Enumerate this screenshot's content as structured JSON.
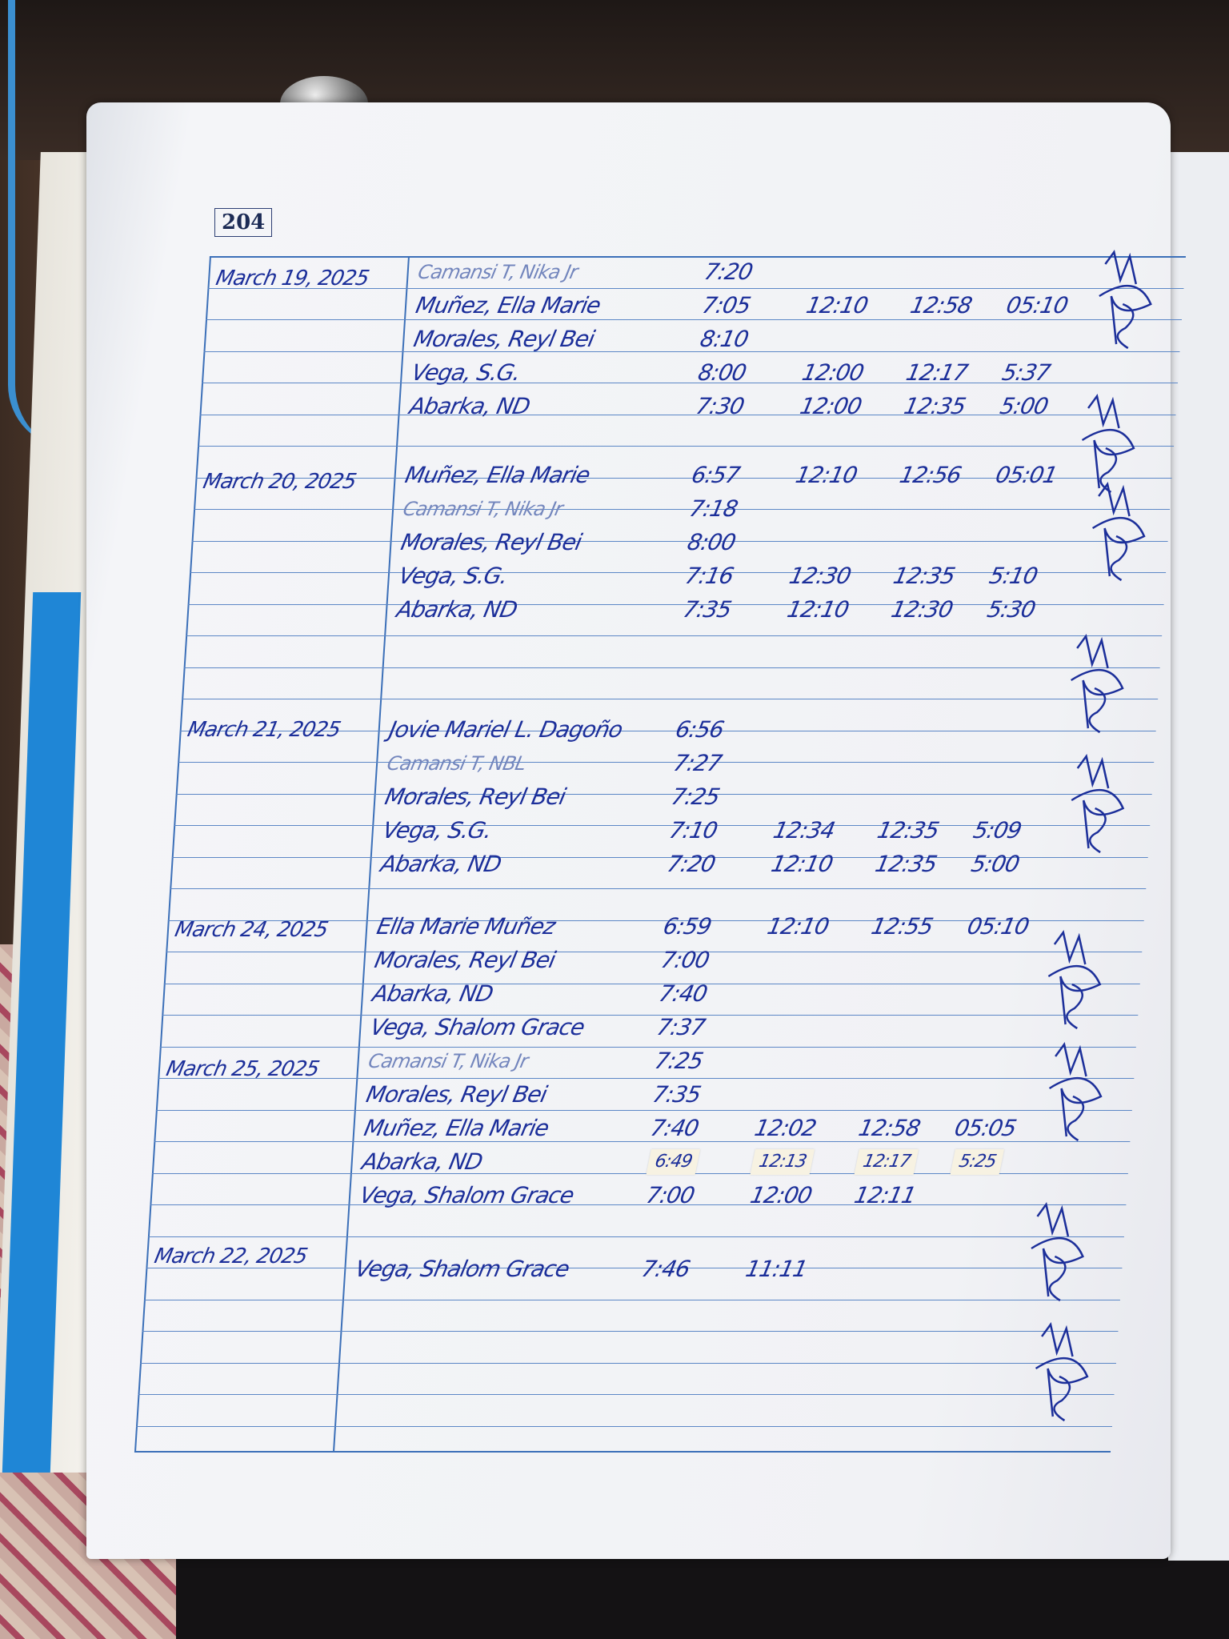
{
  "page_number": "204",
  "colors": {
    "ink": "#1c2f9a",
    "ruling": "#5c87c6",
    "paper": "#f1f2f5"
  },
  "groups": [
    {
      "date": "March 19, 2025",
      "entries": [
        {
          "name": "Camansi T, Nika Jr",
          "times": [
            "7:20"
          ]
        },
        {
          "name": "Muñez, Ella Marie",
          "times": [
            "7:05",
            "12:10",
            "12:58",
            "05:10"
          ]
        },
        {
          "name": "Morales, Reyl Bei",
          "times": [
            "8:10"
          ]
        },
        {
          "name": "Vega, S.G.",
          "times": [
            "8:00",
            "12:00",
            "12:17",
            "5:37"
          ]
        },
        {
          "name": "Abarka, ND",
          "times": [
            "7:30",
            "12:00",
            "12:35",
            "5:00"
          ]
        }
      ]
    },
    {
      "date": "March 20, 2025",
      "entries": [
        {
          "name": "Muñez, Ella Marie",
          "times": [
            "6:57",
            "12:10",
            "12:56",
            "05:01"
          ]
        },
        {
          "name": "Camansi T, Nika Jr",
          "times": [
            "7:18"
          ]
        },
        {
          "name": "Morales, Reyl Bei",
          "times": [
            "8:00"
          ]
        },
        {
          "name": "Vega, S.G.",
          "times": [
            "7:16",
            "12:30",
            "12:35",
            "5:10"
          ]
        },
        {
          "name": "Abarka, ND",
          "times": [
            "7:35",
            "12:10",
            "12:30",
            "5:30"
          ]
        }
      ]
    },
    {
      "date": "March 21, 2025",
      "entries": [
        {
          "name": "Jovie Mariel L. Dagoño",
          "times": [
            "6:56"
          ]
        },
        {
          "name": "Camansi T, NBL",
          "times": [
            "7:27"
          ]
        },
        {
          "name": "Morales, Reyl Bei",
          "times": [
            "7:25"
          ]
        },
        {
          "name": "Vega, S.G.",
          "times": [
            "7:10",
            "12:34",
            "12:35",
            "5:09"
          ]
        },
        {
          "name": "Abarka, ND",
          "times": [
            "7:20",
            "12:10",
            "12:35",
            "5:00"
          ]
        }
      ]
    },
    {
      "date": "March 24, 2025",
      "entries": [
        {
          "name": "Ella Marie Muñez",
          "times": [
            "6:59",
            "12:10",
            "12:55",
            "05:10"
          ]
        },
        {
          "name": "Morales, Reyl Bei",
          "times": [
            "7:00"
          ]
        },
        {
          "name": "Abarka, ND",
          "times": [
            "7:40"
          ]
        },
        {
          "name": "Vega, Shalom Grace",
          "times": [
            "7:37"
          ]
        }
      ]
    },
    {
      "date": "March 25, 2025",
      "entries": [
        {
          "name": "Camansi T, Nika Jr",
          "times": [
            "7:25"
          ]
        },
        {
          "name": "Morales, Reyl Bei",
          "times": [
            "7:35"
          ]
        },
        {
          "name": "Muñez, Ella Marie",
          "times": [
            "7:40",
            "12:02",
            "12:58",
            "05:05"
          ]
        },
        {
          "name": "Abarka, ND",
          "times": [
            "6:49",
            "12:13",
            "12:17",
            "5:25"
          ],
          "taped": true
        },
        {
          "name": "Vega, Shalom Grace",
          "times": [
            "7:00",
            "12:00",
            "12:11"
          ]
        }
      ]
    },
    {
      "date": "March 22, 2025",
      "entries": [
        {
          "name": "Vega, Shalom Grace",
          "times": [
            "7:46",
            "11:11"
          ]
        }
      ]
    }
  ]
}
